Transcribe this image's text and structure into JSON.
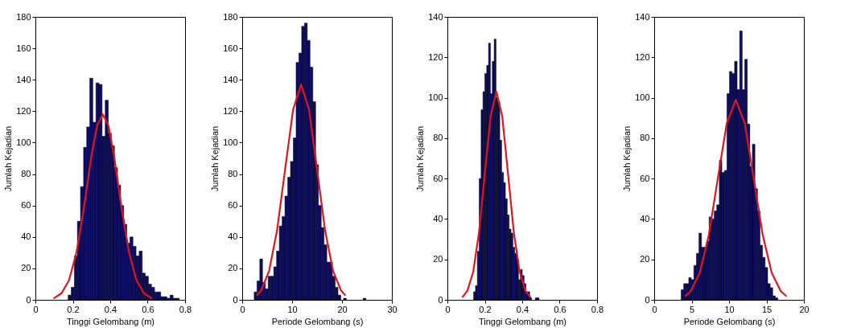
{
  "chart_data": [
    {
      "type": "histogram",
      "xlabel": "Tinggi Gelombang (m)",
      "ylabel": "Jumlah Kejadian",
      "xlim": [
        0,
        0.8
      ],
      "xticks": [
        0,
        0.2,
        0.4,
        0.6,
        0.8
      ],
      "ylim": [
        0,
        180
      ],
      "yticks": [
        0,
        20,
        40,
        60,
        80,
        100,
        120,
        140,
        160,
        180
      ],
      "grid": false,
      "series": [
        {
          "type": "histogram",
          "color": "#0c0c66",
          "bins": [
            0.175,
            0.1915,
            0.208,
            0.2245,
            0.241,
            0.2575,
            0.274,
            0.2905,
            0.307,
            0.3235,
            0.34,
            0.3565,
            0.373,
            0.3895,
            0.406,
            0.4225,
            0.439,
            0.4555,
            0.472,
            0.4885,
            0.505,
            0.5215,
            0.538,
            0.5545,
            0.571,
            0.5875,
            0.604,
            0.6205,
            0.637,
            0.6535,
            0.67,
            0.6865,
            0.703,
            0.7195,
            0.736,
            0.7525,
            0.769
          ],
          "values": [
            3,
            8,
            28,
            50,
            72,
            97,
            110,
            141,
            113,
            138,
            137,
            104,
            127,
            106,
            98,
            84,
            73,
            60,
            48,
            36,
            40,
            34,
            28,
            31,
            17,
            15,
            10,
            8,
            5,
            5,
            2,
            2,
            1,
            3,
            1,
            1
          ]
        },
        {
          "type": "line",
          "color": "#e0161e",
          "x": [
            0.1,
            0.14,
            0.18,
            0.22,
            0.26,
            0.3,
            0.33,
            0.36,
            0.39,
            0.42,
            0.46,
            0.5,
            0.54,
            0.58,
            0.62
          ],
          "values": [
            1.1,
            4.2,
            12.5,
            30.4,
            59,
            92,
            111,
            118,
            111,
            92,
            59,
            30.4,
            12.5,
            4.2,
            1.1
          ]
        }
      ]
    },
    {
      "type": "histogram",
      "xlabel": "Periode Gelombang (s)",
      "ylabel": "Jumlah Kejadian",
      "xlim": [
        0,
        30
      ],
      "xticks": [
        0,
        10,
        20,
        30
      ],
      "ylim": [
        0,
        180
      ],
      "yticks": [
        0,
        20,
        40,
        60,
        80,
        100,
        120,
        140,
        160,
        180
      ],
      "grid": false,
      "series": [
        {
          "type": "histogram",
          "color": "#0c0c66",
          "bins": [
            2.4,
            2.96,
            3.52,
            4.08,
            4.64,
            5.2,
            5.76,
            6.32,
            6.88,
            7.44,
            8,
            8.56,
            9.12,
            9.68,
            10.24,
            10.8,
            11.36,
            11.92,
            12.48,
            13.04,
            13.6,
            14.16,
            14.72,
            15.28,
            15.84,
            16.4,
            16.96,
            17.52,
            18.08,
            18.64,
            19.2,
            19.76,
            20.32,
            20.88,
            21.44,
            22,
            22.56,
            23.12,
            23.68,
            24.24,
            24.8
          ],
          "values": [
            5,
            12,
            26,
            11,
            7,
            15,
            15,
            21,
            31,
            47,
            53,
            66,
            78,
            88,
            103,
            151,
            157,
            174,
            176,
            165,
            148,
            126,
            86,
            60,
            46,
            35,
            24,
            24,
            15,
            8,
            3,
            0,
            1,
            0,
            0,
            0,
            0,
            0,
            0,
            1
          ]
        },
        {
          "type": "line",
          "color": "#e0161e",
          "x": [
            3,
            3.8,
            5.4,
            7,
            8.6,
            10.2,
            11.8,
            13.4,
            15,
            16.6,
            18.2,
            19.8,
            20.6
          ],
          "values": [
            3.1,
            6,
            18.5,
            44.5,
            83,
            121,
            137,
            121,
            83,
            44.5,
            18.5,
            6,
            3.1
          ]
        }
      ]
    },
    {
      "type": "histogram",
      "xlabel": "Tinggi Gelombang (m)",
      "ylabel": "Jumlah Kejadian",
      "xlim": [
        0,
        0.8
      ],
      "xticks": [
        0,
        0.2,
        0.4,
        0.6,
        0.8
      ],
      "ylim": [
        0,
        140
      ],
      "yticks": [
        0,
        20,
        40,
        60,
        80,
        100,
        120,
        140
      ],
      "grid": false,
      "series": [
        {
          "type": "histogram",
          "color": "#0c0c66",
          "bins": [
            0.14,
            0.15,
            0.16,
            0.17,
            0.18,
            0.19,
            0.2,
            0.21,
            0.22,
            0.23,
            0.24,
            0.25,
            0.26,
            0.27,
            0.28,
            0.29,
            0.3,
            0.31,
            0.32,
            0.33,
            0.34,
            0.35,
            0.36,
            0.37,
            0.38,
            0.39,
            0.4,
            0.41,
            0.42,
            0.43,
            0.44,
            0.45,
            0.46,
            0.47,
            0.48,
            0.49
          ],
          "values": [
            4,
            7,
            24,
            60,
            94,
            103,
            112,
            116,
            127,
            102,
            118,
            129,
            100,
            98,
            79,
            63,
            58,
            50,
            42,
            35,
            33,
            26,
            23,
            20,
            10,
            15,
            12,
            8,
            4,
            4,
            1,
            0,
            0,
            1,
            1
          ]
        },
        {
          "type": "line",
          "color": "#e0161e",
          "x": [
            0.082,
            0.107,
            0.138,
            0.169,
            0.2,
            0.231,
            0.262,
            0.293,
            0.324,
            0.355,
            0.386,
            0.417,
            0.442
          ],
          "values": [
            1.5,
            4.5,
            13.9,
            33.4,
            62.5,
            90.9,
            103,
            90.9,
            62.5,
            33.4,
            13.9,
            4.5,
            1.5
          ]
        }
      ]
    },
    {
      "type": "histogram",
      "xlabel": "Periode Gelombang (s)",
      "ylabel": "Jumlah Kejadian",
      "xlim": [
        0,
        20
      ],
      "xticks": [
        0,
        5,
        10,
        15,
        20
      ],
      "ylim": [
        0,
        140
      ],
      "yticks": [
        0,
        20,
        40,
        60,
        80,
        100,
        120,
        140
      ],
      "grid": false,
      "series": [
        {
          "type": "histogram",
          "color": "#0c0c66",
          "bins": [
            3.6,
            3.94,
            4.28,
            4.62,
            4.96,
            5.3,
            5.64,
            5.98,
            6.32,
            6.66,
            7,
            7.34,
            7.68,
            8.02,
            8.36,
            8.7,
            9.04,
            9.38,
            9.72,
            10.06,
            10.4,
            10.74,
            11.08,
            11.42,
            11.76,
            12.1,
            12.44,
            12.78,
            13.12,
            13.46,
            13.8,
            14.14,
            14.48,
            14.82,
            15.16,
            15.5,
            15.84,
            16.18,
            16.52
          ],
          "values": [
            5,
            8,
            8,
            11,
            10,
            17,
            23,
            33,
            26,
            26,
            29,
            41,
            40,
            44,
            47,
            69,
            63,
            64,
            102,
            113,
            112,
            118,
            104,
            133,
            104,
            119,
            87,
            66,
            77,
            55,
            44,
            27,
            21,
            16,
            8,
            6,
            2,
            1
          ]
        },
        {
          "type": "line",
          "color": "#e0161e",
          "x": [
            4.2,
            4.9,
            6.1,
            7.3,
            8.5,
            9.7,
            10.9,
            12.1,
            13.3,
            14.5,
            15.7,
            16.9,
            17.6
          ],
          "values": [
            2,
            4.4,
            13.4,
            32.1,
            60,
            87.4,
            99,
            87.4,
            60,
            32.1,
            13.4,
            4.4,
            2
          ]
        }
      ]
    }
  ]
}
